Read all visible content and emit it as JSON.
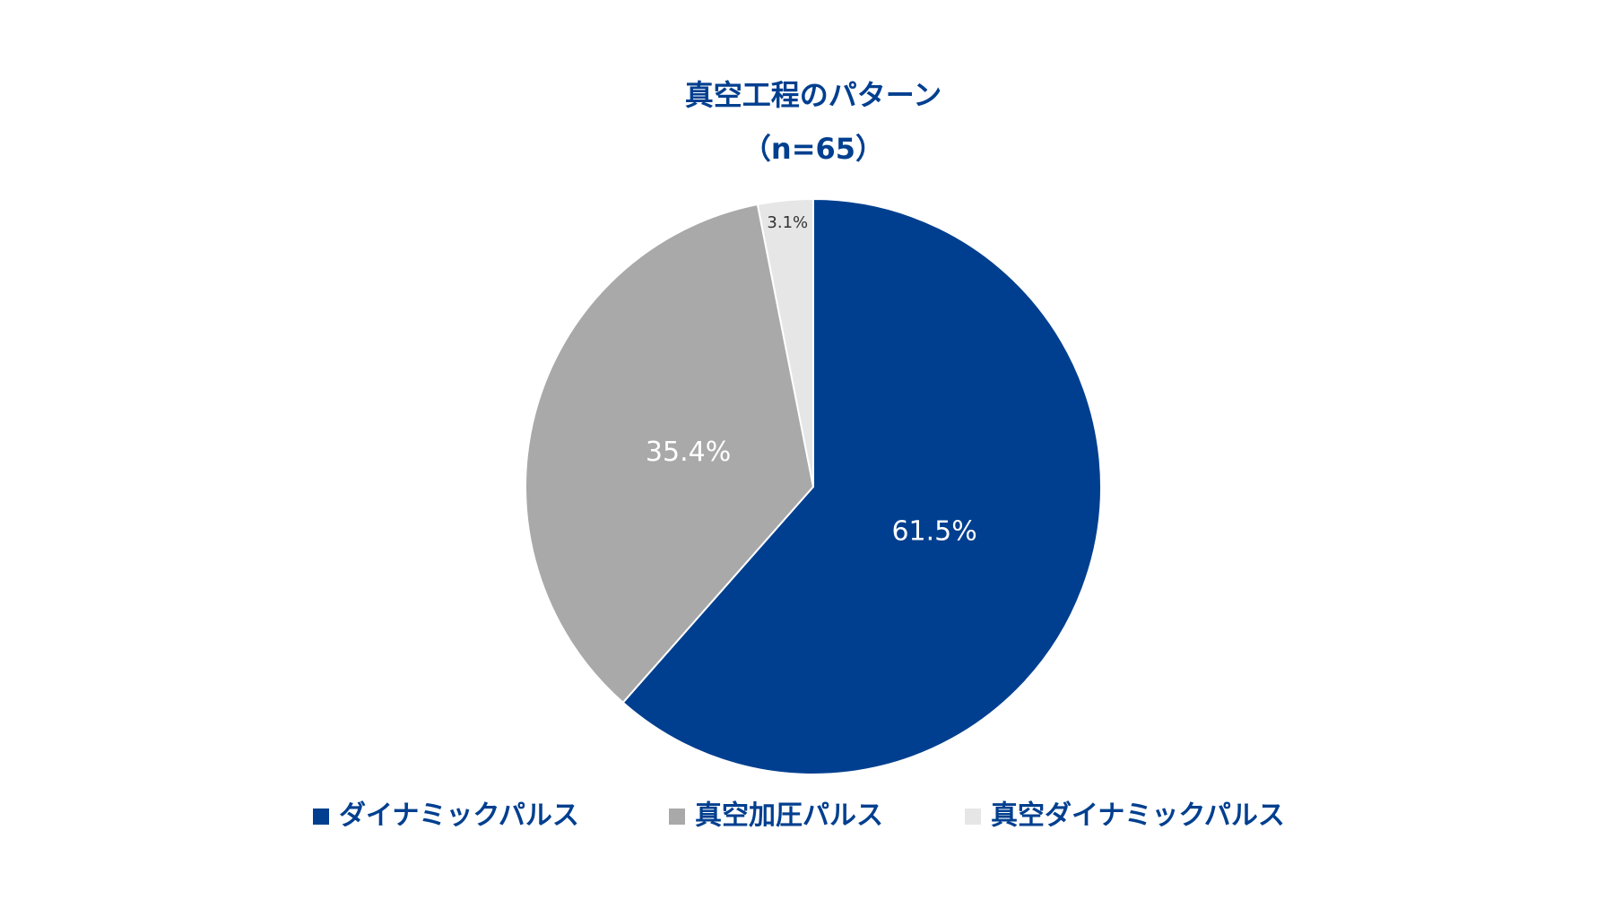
{
  "chart_data": {
    "type": "pie",
    "title": "真空工程のパターン",
    "subtitle": "（n=65）",
    "categories": [
      "ダイナミックパルス",
      "真空加圧パルス",
      "真空ダイナミックパルス"
    ],
    "values": [
      61.5,
      35.4,
      3.1
    ],
    "value_labels": [
      "61.5%",
      "35.4%",
      "3.1%"
    ],
    "colors": [
      "#003f8f",
      "#a9a9a9",
      "#e6e6e6"
    ],
    "legend": "bottom"
  }
}
